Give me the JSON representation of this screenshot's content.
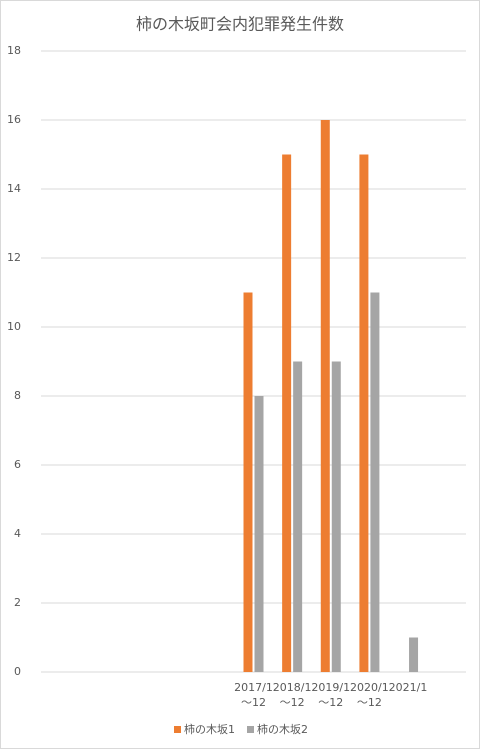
{
  "chart_data": {
    "type": "bar",
    "title": "柿の木坂町会内犯罪発生件数",
    "categories": [
      null,
      null,
      null,
      null,
      null,
      "2017/1～12",
      "2018/1～12",
      "2019/1～12",
      "2020/1～12",
      "2021/1",
      null
    ],
    "series": [
      {
        "name": "柿の木坂1",
        "color": "#ed7d31",
        "values": [
          null,
          null,
          null,
          null,
          null,
          11,
          15,
          16,
          15,
          null,
          null
        ]
      },
      {
        "name": "柿の木坂2",
        "color": "#a5a5a5",
        "values": [
          null,
          null,
          null,
          null,
          null,
          8,
          9,
          9,
          11,
          1,
          null
        ]
      }
    ],
    "ylim": [
      0,
      18
    ],
    "yticks": [
      0,
      2,
      4,
      6,
      8,
      10,
      12,
      14,
      16,
      18
    ],
    "grid": true,
    "legend": "bottom"
  }
}
